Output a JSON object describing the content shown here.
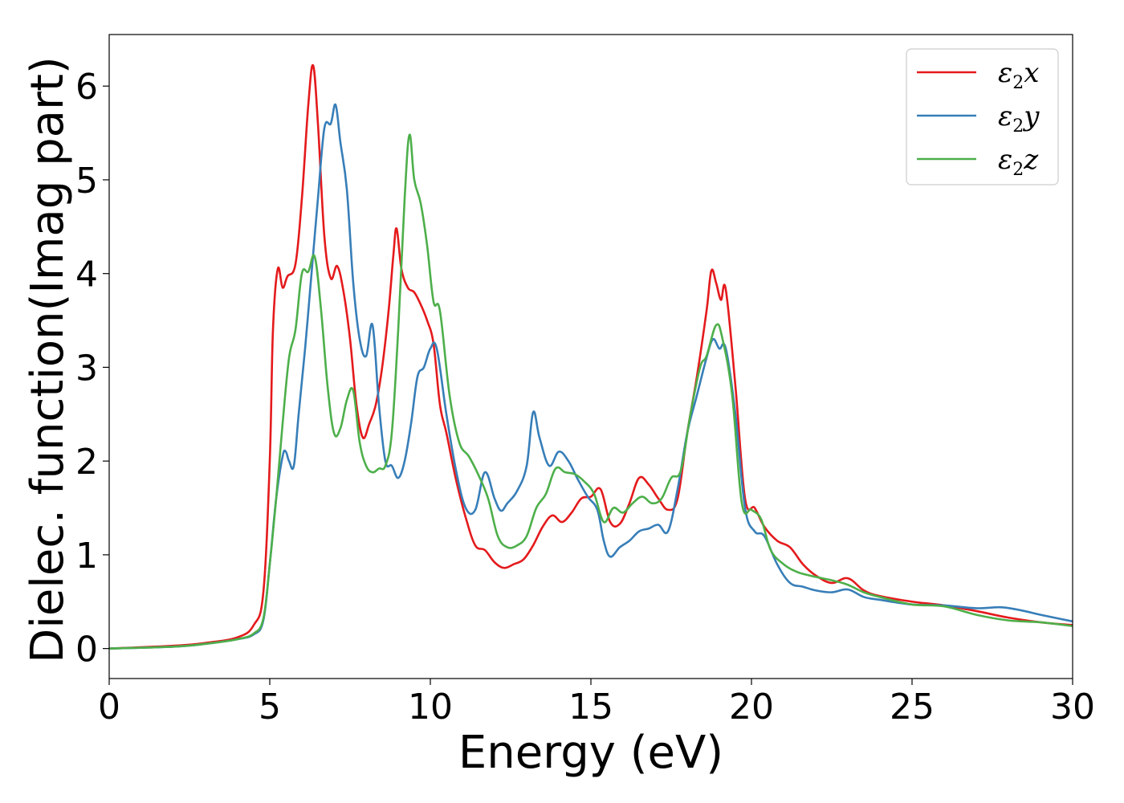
{
  "chart_data": {
    "type": "line",
    "title": "",
    "xlabel": "Energy (eV)",
    "ylabel": "Dielec. function(Imag part)",
    "xlim": [
      0,
      30
    ],
    "ylim": [
      -0.32,
      6.55
    ],
    "xticks": [
      0,
      5,
      10,
      15,
      20,
      25,
      30
    ],
    "yticks": [
      0,
      1,
      2,
      3,
      4,
      5,
      6
    ],
    "grid": false,
    "legend_position": "top-right",
    "series": [
      {
        "name": "ε2x",
        "legend": {
          "symbol": "ε",
          "sub": "2",
          "axis": "x"
        },
        "color": "#e41a1c",
        "x": [
          0,
          2,
          3,
          4,
          4.5,
          4.8,
          5.0,
          5.1,
          5.25,
          5.4,
          5.55,
          5.8,
          6.0,
          6.2,
          6.35,
          6.5,
          6.7,
          6.9,
          7.1,
          7.3,
          7.5,
          7.7,
          7.9,
          8.1,
          8.3,
          8.5,
          8.7,
          8.85,
          8.95,
          9.1,
          9.3,
          9.5,
          9.7,
          9.9,
          10.1,
          10.3,
          10.5,
          10.8,
          11.1,
          11.4,
          11.7,
          12.0,
          12.3,
          12.6,
          12.9,
          13.2,
          13.5,
          13.8,
          14.1,
          14.4,
          14.7,
          15.0,
          15.3,
          15.6,
          15.9,
          16.2,
          16.5,
          16.8,
          17.1,
          17.4,
          17.7,
          18.0,
          18.3,
          18.6,
          18.75,
          18.9,
          19.05,
          19.2,
          19.5,
          19.8,
          20.1,
          20.4,
          20.8,
          21.2,
          21.6,
          22.0,
          22.5,
          23.0,
          23.5,
          24.0,
          25.0,
          26.0,
          27.0,
          28.0,
          29.0,
          30.0
        ],
        "y": [
          0.0,
          0.03,
          0.06,
          0.12,
          0.25,
          0.6,
          2.0,
          3.4,
          4.05,
          3.85,
          3.97,
          4.1,
          4.8,
          5.8,
          6.22,
          5.6,
          4.4,
          3.95,
          4.08,
          3.8,
          3.3,
          2.6,
          2.25,
          2.4,
          2.6,
          3.0,
          3.6,
          4.2,
          4.48,
          4.05,
          3.85,
          3.8,
          3.67,
          3.5,
          3.25,
          2.6,
          2.3,
          1.8,
          1.4,
          1.1,
          1.05,
          0.92,
          0.86,
          0.9,
          0.95,
          1.1,
          1.3,
          1.42,
          1.35,
          1.45,
          1.6,
          1.62,
          1.7,
          1.35,
          1.33,
          1.55,
          1.82,
          1.75,
          1.6,
          1.48,
          1.6,
          2.3,
          2.9,
          3.6,
          4.03,
          3.9,
          3.72,
          3.83,
          2.8,
          1.6,
          1.5,
          1.3,
          1.15,
          1.08,
          0.9,
          0.78,
          0.7,
          0.75,
          0.62,
          0.56,
          0.5,
          0.46,
          0.4,
          0.33,
          0.28,
          0.25
        ]
      },
      {
        "name": "ε2y",
        "legend": {
          "symbol": "ε",
          "sub": "2",
          "axis": "y"
        },
        "color": "#377eb8",
        "x": [
          0,
          2,
          3,
          4,
          4.5,
          4.8,
          5.0,
          5.2,
          5.4,
          5.5,
          5.6,
          5.75,
          5.9,
          6.1,
          6.3,
          6.5,
          6.7,
          6.9,
          7.05,
          7.2,
          7.4,
          7.6,
          7.8,
          8.0,
          8.2,
          8.4,
          8.6,
          8.8,
          9.0,
          9.2,
          9.4,
          9.6,
          9.8,
          10.0,
          10.2,
          10.5,
          10.8,
          11.1,
          11.4,
          11.7,
          12.0,
          12.2,
          12.4,
          12.7,
          13.0,
          13.2,
          13.4,
          13.7,
          14.0,
          14.3,
          14.6,
          14.9,
          15.2,
          15.4,
          15.6,
          15.9,
          16.2,
          16.5,
          16.8,
          17.1,
          17.4,
          17.7,
          18.0,
          18.3,
          18.6,
          18.8,
          19.0,
          19.2,
          19.5,
          19.8,
          20.1,
          20.4,
          20.8,
          21.2,
          21.6,
          22.0,
          22.5,
          23.0,
          23.5,
          24.0,
          25.0,
          26.0,
          27.0,
          27.8,
          28.5,
          29.0,
          30.0
        ],
        "y": [
          0.0,
          0.02,
          0.05,
          0.1,
          0.15,
          0.3,
          0.9,
          1.6,
          2.05,
          2.1,
          2.0,
          1.95,
          2.5,
          3.2,
          4.0,
          4.8,
          5.55,
          5.6,
          5.8,
          5.4,
          4.9,
          3.9,
          3.3,
          3.12,
          3.45,
          2.6,
          2.0,
          1.95,
          1.82,
          2.0,
          2.4,
          2.9,
          3.0,
          3.2,
          3.2,
          2.5,
          1.9,
          1.5,
          1.48,
          1.88,
          1.6,
          1.47,
          1.55,
          1.68,
          1.95,
          2.52,
          2.25,
          1.95,
          2.1,
          2.0,
          1.8,
          1.62,
          1.48,
          1.15,
          0.98,
          1.08,
          1.15,
          1.25,
          1.28,
          1.32,
          1.25,
          1.7,
          2.3,
          2.7,
          3.1,
          3.3,
          3.2,
          3.2,
          2.5,
          1.5,
          1.25,
          1.2,
          0.9,
          0.7,
          0.66,
          0.62,
          0.6,
          0.63,
          0.55,
          0.52,
          0.47,
          0.46,
          0.43,
          0.44,
          0.4,
          0.36,
          0.29
        ]
      },
      {
        "name": "ε2z",
        "legend": {
          "symbol": "ε",
          "sub": "2",
          "axis": "z"
        },
        "color": "#4daf4a",
        "x": [
          0,
          2,
          3,
          4,
          4.5,
          4.8,
          5.0,
          5.2,
          5.4,
          5.6,
          5.8,
          6.0,
          6.2,
          6.4,
          6.6,
          6.8,
          7.0,
          7.2,
          7.4,
          7.6,
          7.8,
          8.0,
          8.2,
          8.4,
          8.6,
          8.8,
          9.0,
          9.2,
          9.35,
          9.5,
          9.7,
          9.9,
          10.1,
          10.3,
          10.6,
          10.9,
          11.2,
          11.5,
          11.8,
          12.1,
          12.4,
          12.7,
          13.0,
          13.3,
          13.6,
          13.9,
          14.2,
          14.5,
          14.8,
          15.1,
          15.4,
          15.7,
          16.0,
          16.3,
          16.6,
          16.9,
          17.2,
          17.5,
          17.8,
          18.1,
          18.4,
          18.6,
          18.9,
          19.1,
          19.4,
          19.7,
          20.0,
          20.3,
          20.6,
          21.0,
          21.4,
          21.8,
          22.2,
          22.6,
          23.0,
          23.5,
          24.0,
          25.0,
          26.0,
          27.0,
          28.0,
          29.0,
          30.0
        ],
        "y": [
          0.0,
          0.02,
          0.05,
          0.1,
          0.16,
          0.32,
          0.9,
          1.6,
          2.4,
          3.1,
          3.4,
          4.0,
          4.02,
          4.18,
          3.6,
          2.8,
          2.3,
          2.35,
          2.65,
          2.75,
          2.2,
          1.95,
          1.88,
          1.92,
          1.95,
          2.3,
          3.4,
          4.8,
          5.48,
          5.0,
          4.75,
          4.3,
          3.7,
          3.6,
          2.7,
          2.2,
          2.05,
          1.85,
          1.6,
          1.2,
          1.08,
          1.1,
          1.2,
          1.5,
          1.65,
          1.92,
          1.88,
          1.86,
          1.78,
          1.65,
          1.35,
          1.5,
          1.45,
          1.55,
          1.62,
          1.55,
          1.6,
          1.82,
          1.9,
          2.5,
          3.0,
          3.12,
          3.45,
          3.3,
          2.7,
          1.55,
          1.48,
          1.38,
          1.05,
          0.9,
          0.82,
          0.78,
          0.75,
          0.72,
          0.68,
          0.6,
          0.55,
          0.47,
          0.45,
          0.36,
          0.3,
          0.28,
          0.24
        ]
      }
    ]
  }
}
